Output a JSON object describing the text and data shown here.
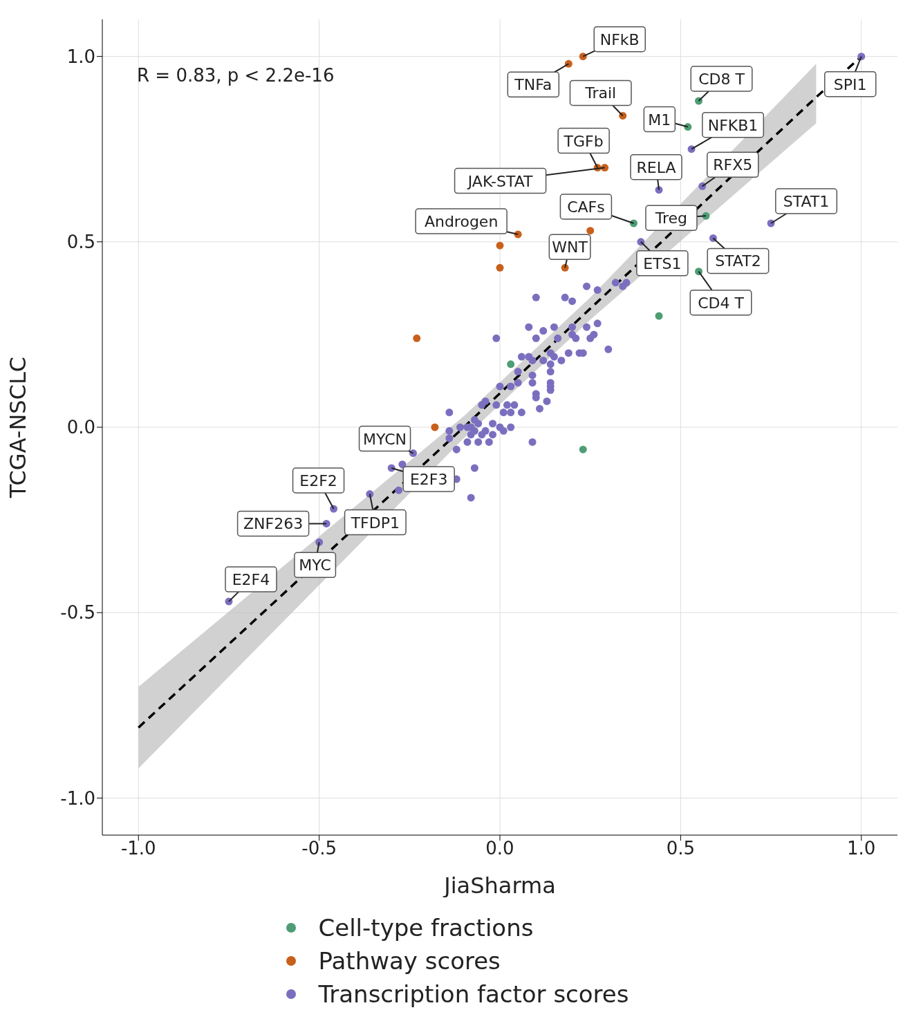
{
  "chart_data": {
    "type": "scatter",
    "xlabel": "JiaSharma",
    "ylabel": "TCGA-NSCLC",
    "xlim": [
      -1.1,
      1.1
    ],
    "ylim": [
      -1.1,
      1.1
    ],
    "xticks": [
      {
        "value": -1,
        "label": "-1.0"
      },
      {
        "value": -0.5,
        "label": "-0.5"
      },
      {
        "value": 0,
        "label": "0.0"
      },
      {
        "value": 0.5,
        "label": "0.5"
      },
      {
        "value": 1,
        "label": "1.0"
      }
    ],
    "yticks": [
      {
        "value": -1,
        "label": "-1.0"
      },
      {
        "value": -0.5,
        "label": "-0.5"
      },
      {
        "value": 0,
        "label": "0.0"
      },
      {
        "value": 0.5,
        "label": "0.5"
      },
      {
        "value": 1,
        "label": "1.0"
      }
    ],
    "grid": true,
    "legend": "bottom",
    "marker": "circle",
    "series": [
      {
        "name": "Cell-type fractions",
        "color": "#4e9d74",
        "x": [
          0.55,
          0.52,
          0.37,
          0.57,
          0.55,
          0.44,
          0.03,
          0.23
        ],
        "values": [
          0.88,
          0.81,
          0.55,
          0.57,
          0.42,
          0.3,
          0.17,
          -0.06
        ]
      },
      {
        "name": "Pathway scores",
        "color": "#c8601c",
        "x": [
          0.23,
          0.19,
          0.34,
          0.27,
          0.29,
          0.05,
          0.0,
          0.0,
          0.25,
          0.18,
          -0.23,
          -0.18
        ],
        "values": [
          1.0,
          0.98,
          0.84,
          0.7,
          0.7,
          0.52,
          0.49,
          0.43,
          0.53,
          0.43,
          0.24,
          0.0
        ]
      },
      {
        "name": "Transcription factor scores",
        "color": "#7a6fbf",
        "x": [
          0.53,
          0.44,
          0.56,
          0.75,
          0.39,
          0.59,
          1.0,
          -0.24,
          -0.3,
          -0.36,
          -0.46,
          -0.48,
          -0.5,
          -0.75,
          -0.27,
          -0.28,
          -0.12,
          -0.14,
          -0.12,
          -0.08,
          0.24,
          0.27,
          0.32,
          0.34,
          0.35,
          0.1,
          0.18,
          0.2,
          0.08,
          0.12,
          0.15,
          0.2,
          0.2,
          0.24,
          0.27,
          0.1,
          -0.01,
          0.16,
          0.21,
          0.25,
          0.26,
          0.19,
          0.22,
          0.23,
          0.3,
          0.06,
          0.08,
          0.09,
          0.12,
          0.14,
          0.15,
          0.17,
          0.14,
          0.14,
          0.09,
          0.05,
          0.05,
          0.03,
          0.0,
          0.09,
          0.14,
          0.14,
          0.1,
          0.14,
          0.1,
          0.13,
          -0.04,
          -0.05,
          -0.01,
          0.02,
          0.04,
          0.01,
          0.03,
          0.06,
          0.11,
          -0.07,
          -0.08,
          -0.06,
          -0.02,
          0.0,
          0.03,
          -0.11,
          -0.14,
          -0.09,
          -0.07,
          -0.04,
          -0.02,
          0.01,
          -0.14,
          -0.09,
          -0.06,
          -0.03,
          -0.08,
          -0.05,
          0.09,
          -0.07
        ],
        "values": [
          0.75,
          0.64,
          0.65,
          0.55,
          0.5,
          0.51,
          1.0,
          -0.07,
          -0.11,
          -0.18,
          -0.22,
          -0.26,
          -0.31,
          -0.47,
          -0.1,
          -0.17,
          -0.14,
          0.04,
          -0.06,
          -0.19,
          0.38,
          0.37,
          0.39,
          0.38,
          0.39,
          0.35,
          0.35,
          0.34,
          0.27,
          0.26,
          0.27,
          0.27,
          0.25,
          0.27,
          0.28,
          0.24,
          0.24,
          0.24,
          0.24,
          0.24,
          0.25,
          0.2,
          0.2,
          0.2,
          0.21,
          0.19,
          0.19,
          0.18,
          0.18,
          0.2,
          0.19,
          0.18,
          0.17,
          0.15,
          0.14,
          0.15,
          0.12,
          0.11,
          0.11,
          0.12,
          0.12,
          0.11,
          0.09,
          0.1,
          0.08,
          0.07,
          0.07,
          0.06,
          0.06,
          0.06,
          0.06,
          0.04,
          0.04,
          0.04,
          0.05,
          0.02,
          0.0,
          0.01,
          0.01,
          0.0,
          0.0,
          0.0,
          -0.01,
          0.0,
          -0.01,
          -0.01,
          -0.02,
          -0.01,
          -0.03,
          -0.04,
          -0.04,
          -0.04,
          -0.02,
          -0.02,
          -0.04,
          -0.11
        ]
      },
      {
        "type": "line",
        "color": "#000000",
        "line_style": "dashed",
        "marker": "none",
        "x": [
          -1,
          -0.1,
          0.25,
          0.875,
          1
        ],
        "values": [
          -0.81,
          0.0,
          0.32,
          0.89,
          1.0
        ],
        "lower": [
          -0.92,
          -0.03,
          0.29,
          0.82,
          null
        ],
        "upper": [
          -0.7,
          0.03,
          0.35,
          0.98,
          null
        ]
      }
    ],
    "annotations": [
      "R = 0.83, p < 2.2e-16",
      {
        "text": "NFkB",
        "x": 0.23,
        "y": 1.0
      },
      {
        "text": "TNFa",
        "x": 0.19,
        "y": 0.98
      },
      {
        "text": "Trail",
        "x": 0.34,
        "y": 0.84
      },
      {
        "text": "TGFb",
        "x": 0.27,
        "y": 0.7
      },
      {
        "text": "JAK-STAT",
        "x": 0.29,
        "y": 0.7
      },
      {
        "text": "Androgen",
        "x": 0.05,
        "y": 0.52
      },
      {
        "text": "CD8 T",
        "x": 0.55,
        "y": 0.88
      },
      {
        "text": "M1",
        "x": 0.52,
        "y": 0.81
      },
      {
        "text": "NFKB1",
        "x": 0.53,
        "y": 0.75
      },
      {
        "text": "RELA",
        "x": 0.44,
        "y": 0.64
      },
      {
        "text": "RFX5",
        "x": 0.56,
        "y": 0.65
      },
      {
        "text": "STAT1",
        "x": 0.75,
        "y": 0.55
      },
      {
        "text": "CAFs",
        "x": 0.37,
        "y": 0.55
      },
      {
        "text": "Treg",
        "x": 0.57,
        "y": 0.57
      },
      {
        "text": "WNT",
        "x": 0.18,
        "y": 0.43
      },
      {
        "text": "ETS1",
        "x": 0.39,
        "y": 0.5
      },
      {
        "text": "STAT2",
        "x": 0.59,
        "y": 0.51
      },
      {
        "text": "CD4 T",
        "x": 0.55,
        "y": 0.42
      },
      {
        "text": "SPI1",
        "x": 1.0,
        "y": 1.0
      },
      {
        "text": "MYCN",
        "x": -0.24,
        "y": -0.07
      },
      {
        "text": "E2F3",
        "x": -0.3,
        "y": -0.11
      },
      {
        "text": "TFDP1",
        "x": -0.36,
        "y": -0.18
      },
      {
        "text": "E2F2",
        "x": -0.46,
        "y": -0.22
      },
      {
        "text": "ZNF263",
        "x": -0.48,
        "y": -0.26
      },
      {
        "text": "MYC",
        "x": -0.5,
        "y": -0.31
      },
      {
        "text": "E2F4",
        "x": -0.75,
        "y": -0.47
      }
    ]
  }
}
